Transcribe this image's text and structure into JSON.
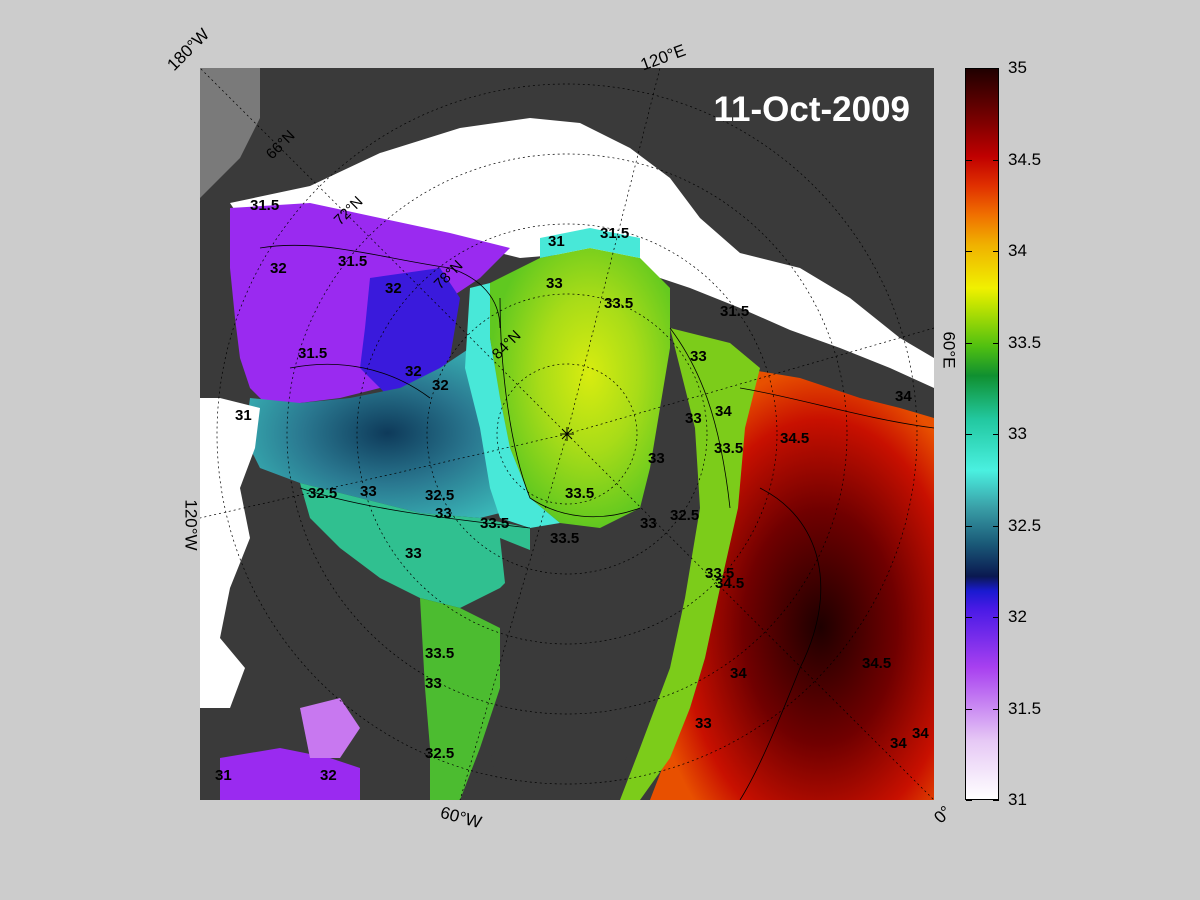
{
  "date": "11-Oct-2009",
  "longitude_labels": {
    "top_left": "180°W",
    "top": "120°E",
    "right": "60°E",
    "bottom_right": "0°",
    "bottom": "60°W",
    "left": "120°W"
  },
  "latitude_labels": [
    "66°N",
    "72°N",
    "78°N",
    "84°N"
  ],
  "colorbar": {
    "ticks": [
      "35",
      "34.5",
      "34",
      "33.5",
      "33",
      "32.5",
      "32",
      "31.5",
      "31"
    ],
    "min": 31,
    "max": 35
  },
  "contour_labels": [
    {
      "v": "31.5"
    },
    {
      "v": "31.5"
    },
    {
      "v": "32"
    },
    {
      "v": "32"
    },
    {
      "v": "78°N"
    },
    {
      "v": "31.5"
    },
    {
      "v": "32"
    },
    {
      "v": "32"
    },
    {
      "v": "31"
    },
    {
      "v": "32.5"
    },
    {
      "v": "33"
    },
    {
      "v": "31.5"
    },
    {
      "v": "33.5"
    },
    {
      "v": "33"
    },
    {
      "v": "31"
    },
    {
      "v": "31.5"
    },
    {
      "v": "33"
    },
    {
      "v": "33"
    },
    {
      "v": "34"
    },
    {
      "v": "34.5"
    },
    {
      "v": "34"
    },
    {
      "v": "33.5"
    },
    {
      "v": "33"
    },
    {
      "v": "33.5"
    },
    {
      "v": "32.5"
    },
    {
      "v": "33"
    },
    {
      "v": "33.5"
    },
    {
      "v": "33.5"
    },
    {
      "v": "33"
    },
    {
      "v": "32.5"
    },
    {
      "v": "33.5"
    },
    {
      "v": "34.5"
    },
    {
      "v": "34"
    },
    {
      "v": "33"
    },
    {
      "v": "34"
    },
    {
      "v": "34.5"
    },
    {
      "v": "34"
    },
    {
      "v": "33.5"
    },
    {
      "v": "33"
    },
    {
      "v": "32.5"
    },
    {
      "v": "32"
    },
    {
      "v": "31"
    },
    {
      "v": "33"
    }
  ]
}
